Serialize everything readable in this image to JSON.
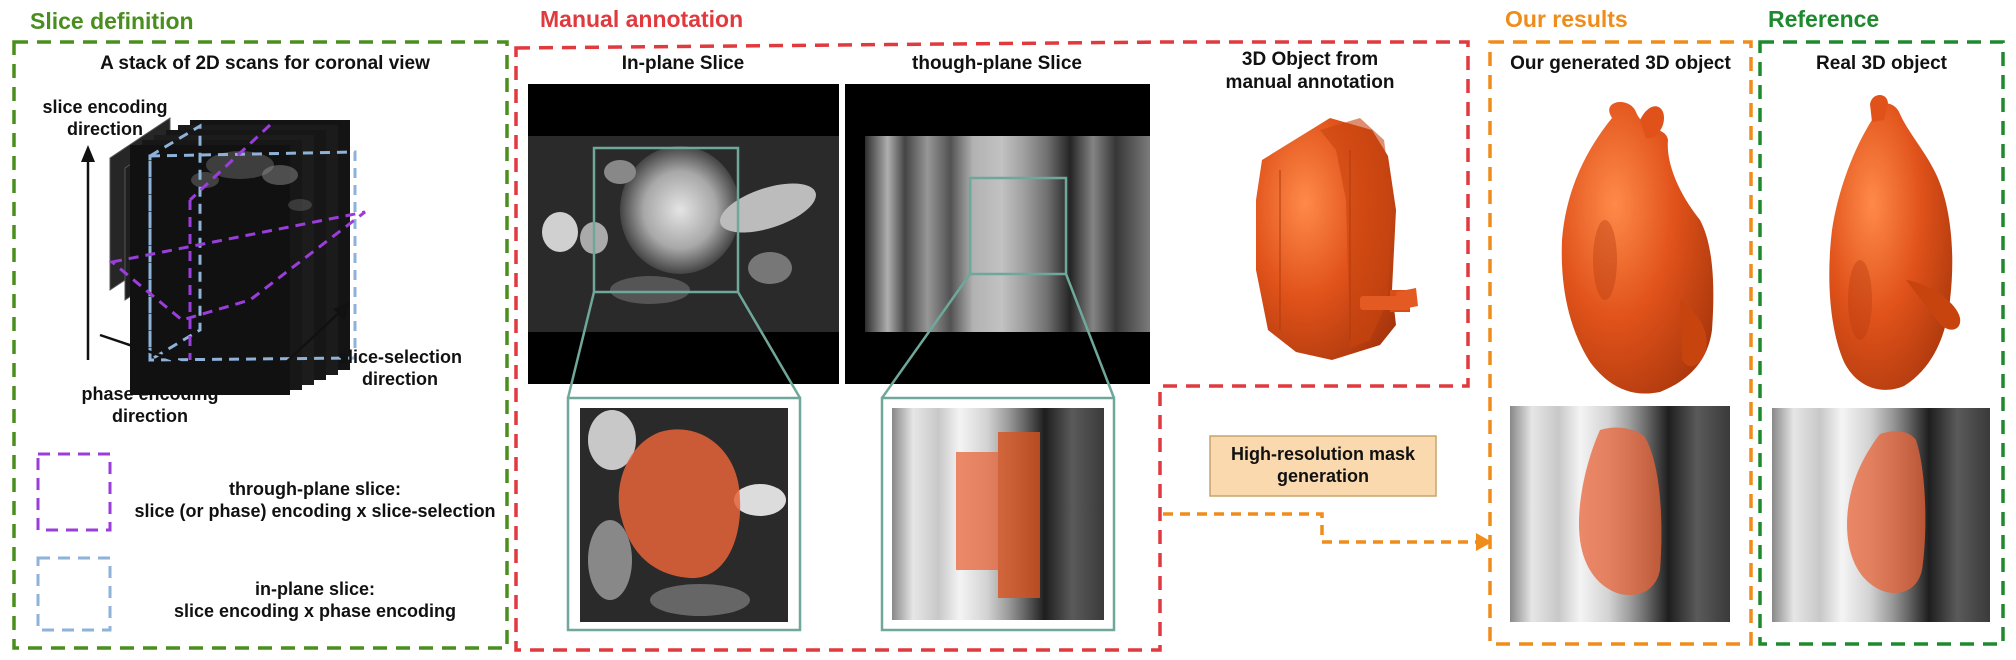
{
  "colors": {
    "green": "#4a8f1e",
    "red": "#e0393e",
    "orange": "#f08c1a",
    "dark_green": "#1e8a2e",
    "purple": "#9b3ddb",
    "blue": "#8fb2d9",
    "teal": "#6fa89a",
    "mask": "#e8643a",
    "object": "#e0521a",
    "box_fill": "#f9d9ad"
  },
  "slice_definition": {
    "title": "Slice definition",
    "header": "A stack of 2D scans for coronal view",
    "axis_slice_encoding": "slice encoding\ndirection",
    "axis_phase_encoding": "phase encoding\ndirection",
    "axis_slice_selection": "slice-selection\ndirection",
    "legend_through_plane": "through-plane slice:\nslice (or phase) encoding x slice-selection",
    "legend_in_plane": "in-plane slice:\nslice encoding x phase encoding"
  },
  "manual_annotation": {
    "title": "Manual annotation",
    "in_plane_header": "In-plane Slice",
    "through_plane_header": "though-plane Slice",
    "object_header": "3D Object from\nmanual annotation"
  },
  "mask_generation": {
    "label": "High-resolution mask\ngeneration"
  },
  "our_results": {
    "title": "Our results",
    "header": "Our generated 3D object"
  },
  "reference": {
    "title": "Reference",
    "header": "Real 3D object"
  }
}
